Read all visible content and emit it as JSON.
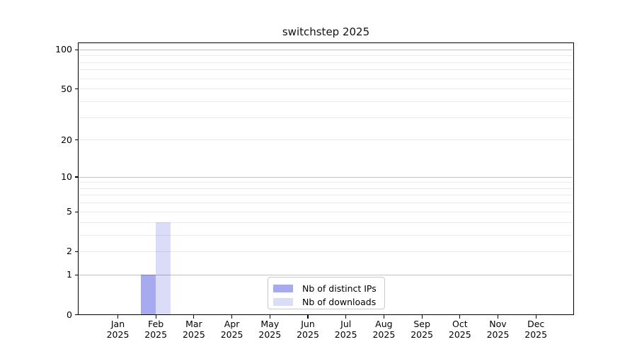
{
  "chart_data": {
    "type": "bar",
    "title": "switchstep 2025",
    "categories": [
      {
        "month": "Jan",
        "year": "2025"
      },
      {
        "month": "Feb",
        "year": "2025"
      },
      {
        "month": "Mar",
        "year": "2025"
      },
      {
        "month": "Apr",
        "year": "2025"
      },
      {
        "month": "May",
        "year": "2025"
      },
      {
        "month": "Jun",
        "year": "2025"
      },
      {
        "month": "Jul",
        "year": "2025"
      },
      {
        "month": "Aug",
        "year": "2025"
      },
      {
        "month": "Sep",
        "year": "2025"
      },
      {
        "month": "Oct",
        "year": "2025"
      },
      {
        "month": "Nov",
        "year": "2025"
      },
      {
        "month": "Dec",
        "year": "2025"
      }
    ],
    "series": [
      {
        "name": "Nb of distinct IPs",
        "color": "#a8aaf0",
        "values": [
          0,
          1,
          0,
          0,
          0,
          0,
          0,
          0,
          0,
          0,
          0,
          0
        ]
      },
      {
        "name": "Nb of downloads",
        "color": "#dadcf8",
        "values": [
          0,
          4,
          0,
          0,
          0,
          0,
          0,
          0,
          0,
          0,
          0,
          0
        ]
      }
    ],
    "y_axis": {
      "scale": "log1p",
      "tick_values": [
        0,
        1,
        2,
        5,
        10,
        20,
        50,
        100
      ],
      "major_gridlines": [
        1,
        10,
        100
      ],
      "minor_gridlines": [
        2,
        3,
        4,
        5,
        6,
        7,
        8,
        9,
        20,
        30,
        40,
        50,
        60,
        70,
        80,
        90
      ],
      "ylim": [
        0,
        113
      ]
    },
    "legend": {
      "position": "inside-bottom-center-right"
    },
    "colors": {
      "grid_major": "rgba(0,0,0,0.24)",
      "grid_minor": "rgba(0,0,0,0.08)",
      "axis": "#000000",
      "background": "#ffffff"
    }
  }
}
